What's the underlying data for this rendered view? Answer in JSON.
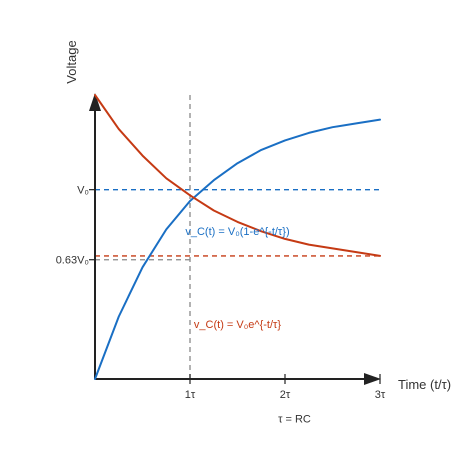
{
  "chart_data": {
    "type": "line",
    "title": "",
    "xlabel": "Time (t/τ)",
    "ylabel": "Voltage",
    "xlim": [
      0,
      3
    ],
    "ylim": [
      0,
      1.5
    ],
    "grid": false,
    "x_ticks": [
      {
        "value": 1,
        "label": "1τ"
      },
      {
        "value": 2,
        "label": "2τ"
      },
      {
        "value": 3,
        "label": "3τ"
      }
    ],
    "y_ticks": [
      {
        "value": 0.63,
        "label": "0.63V₀"
      },
      {
        "value": 1.0,
        "label": "V₀"
      }
    ],
    "series": [
      {
        "name": "v_C(t) = V₀(1-e^{-t/τ})",
        "color": "#1a6fc4",
        "x": [
          0,
          0.25,
          0.5,
          0.75,
          1.0,
          1.25,
          1.5,
          1.75,
          2.0,
          2.25,
          2.5,
          2.75,
          3.0
        ],
        "y": [
          0,
          0.33,
          0.59,
          0.79,
          0.94,
          1.05,
          1.14,
          1.21,
          1.26,
          1.3,
          1.33,
          1.35,
          1.37
        ]
      },
      {
        "name": "v_C(t) = V₀e^{-t/τ}",
        "color": "#c53a14",
        "x": [
          0,
          0.25,
          0.5,
          0.75,
          1.0,
          1.25,
          1.5,
          1.75,
          2.0,
          2.25,
          2.5,
          2.75,
          3.0
        ],
        "y": [
          1.5,
          1.32,
          1.18,
          1.06,
          0.97,
          0.89,
          0.83,
          0.78,
          0.74,
          0.71,
          0.69,
          0.67,
          0.65
        ]
      }
    ],
    "reference_lines": [
      {
        "axis": "y",
        "value": 1.0,
        "color": "#1a6fc4",
        "style": "dashed"
      },
      {
        "axis": "y",
        "value": 0.65,
        "color": "#c53a14",
        "style": "dashed"
      },
      {
        "axis": "x",
        "value": 1,
        "color": "#888888",
        "style": "dashed"
      },
      {
        "axis": "y",
        "value": 0.63,
        "color": "#888888",
        "style": "dashed",
        "x_end": 1
      }
    ],
    "annotations": [
      {
        "text": "v_C(t) = V₀(1-e^{-t/τ})",
        "x": 1.5,
        "y": 0.76,
        "color": "#1a6fc4"
      },
      {
        "text": "v_C(t) = V₀e^{-t/τ}",
        "x": 1.5,
        "y": 0.27,
        "color": "#c53a14"
      },
      {
        "text": "τ = RC",
        "x": 2.1,
        "y": -0.23,
        "color": "#333333"
      }
    ]
  }
}
